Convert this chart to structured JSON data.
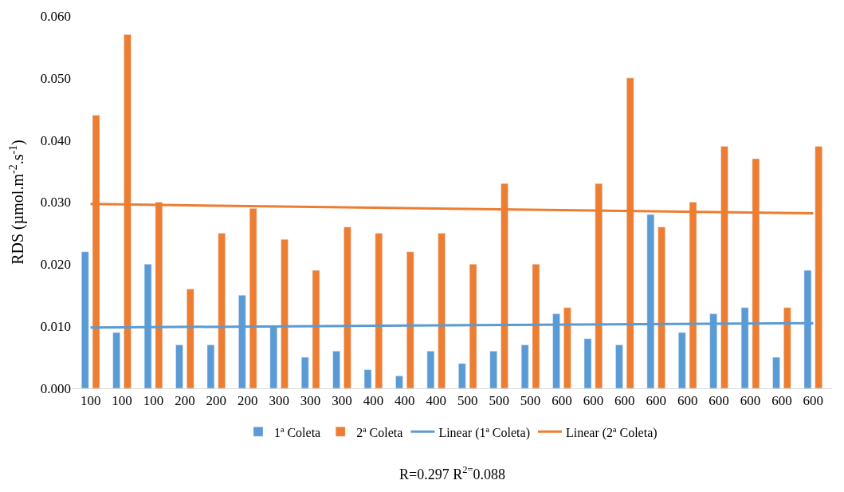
{
  "chart_data": {
    "type": "bar",
    "ylabel": "RDS (µmol.m$^{-2}$.s$^{-1}$)",
    "categories": [
      "100",
      "100",
      "100",
      "200",
      "200",
      "200",
      "300",
      "300",
      "300",
      "400",
      "400",
      "400",
      "500",
      "500",
      "500",
      "600",
      "600",
      "600",
      "600",
      "600",
      "600",
      "600",
      "600",
      "600"
    ],
    "series": [
      {
        "name": "1ª Coleta",
        "color": "#5b9bd5",
        "values": [
          0.022,
          0.009,
          0.02,
          0.007,
          0.007,
          0.015,
          0.01,
          0.005,
          0.006,
          0.003,
          0.002,
          0.006,
          0.004,
          0.006,
          0.007,
          0.012,
          0.008,
          0.007,
          0.028,
          0.009,
          0.012,
          0.013,
          0.005,
          0.019
        ]
      },
      {
        "name": "2ª Coleta",
        "color": "#ed7d31",
        "values": [
          0.044,
          0.057,
          0.03,
          0.016,
          0.025,
          0.029,
          0.024,
          0.019,
          0.026,
          0.025,
          0.022,
          0.025,
          0.02,
          0.033,
          0.02,
          0.013,
          0.033,
          0.05,
          0.026,
          0.03,
          0.039,
          0.037,
          0.013,
          0.039
        ]
      },
      {
        "name": "Linear (1ª Coleta)",
        "type": "line",
        "color": "#5b9bd5",
        "values": [
          0.0098,
          null,
          null,
          null,
          null,
          null,
          null,
          null,
          null,
          null,
          null,
          null,
          null,
          null,
          null,
          null,
          null,
          null,
          null,
          null,
          null,
          null,
          null,
          0.0105
        ]
      },
      {
        "name": "Linear (2ª Coleta)",
        "type": "line",
        "color": "#ed7d31",
        "values": [
          0.0297,
          null,
          null,
          null,
          null,
          null,
          null,
          null,
          null,
          null,
          null,
          null,
          null,
          null,
          null,
          null,
          null,
          null,
          null,
          null,
          null,
          null,
          null,
          0.0282
        ]
      }
    ],
    "ylim": [
      0,
      0.06
    ],
    "yticks": [
      {
        "value": 0,
        "label": "0.000"
      },
      {
        "value": 0.01,
        "label": "0.010"
      },
      {
        "value": 0.02,
        "label": "0.020"
      },
      {
        "value": 0.03,
        "label": "0.030"
      },
      {
        "value": 0.04,
        "label": "0.040"
      },
      {
        "value": 0.05,
        "label": "0.050"
      },
      {
        "value": 0.06,
        "label": "0.060"
      }
    ],
    "annotations": [
      "R=0.297 R$^{2=}$0.088"
    ],
    "legend": "bottom"
  }
}
